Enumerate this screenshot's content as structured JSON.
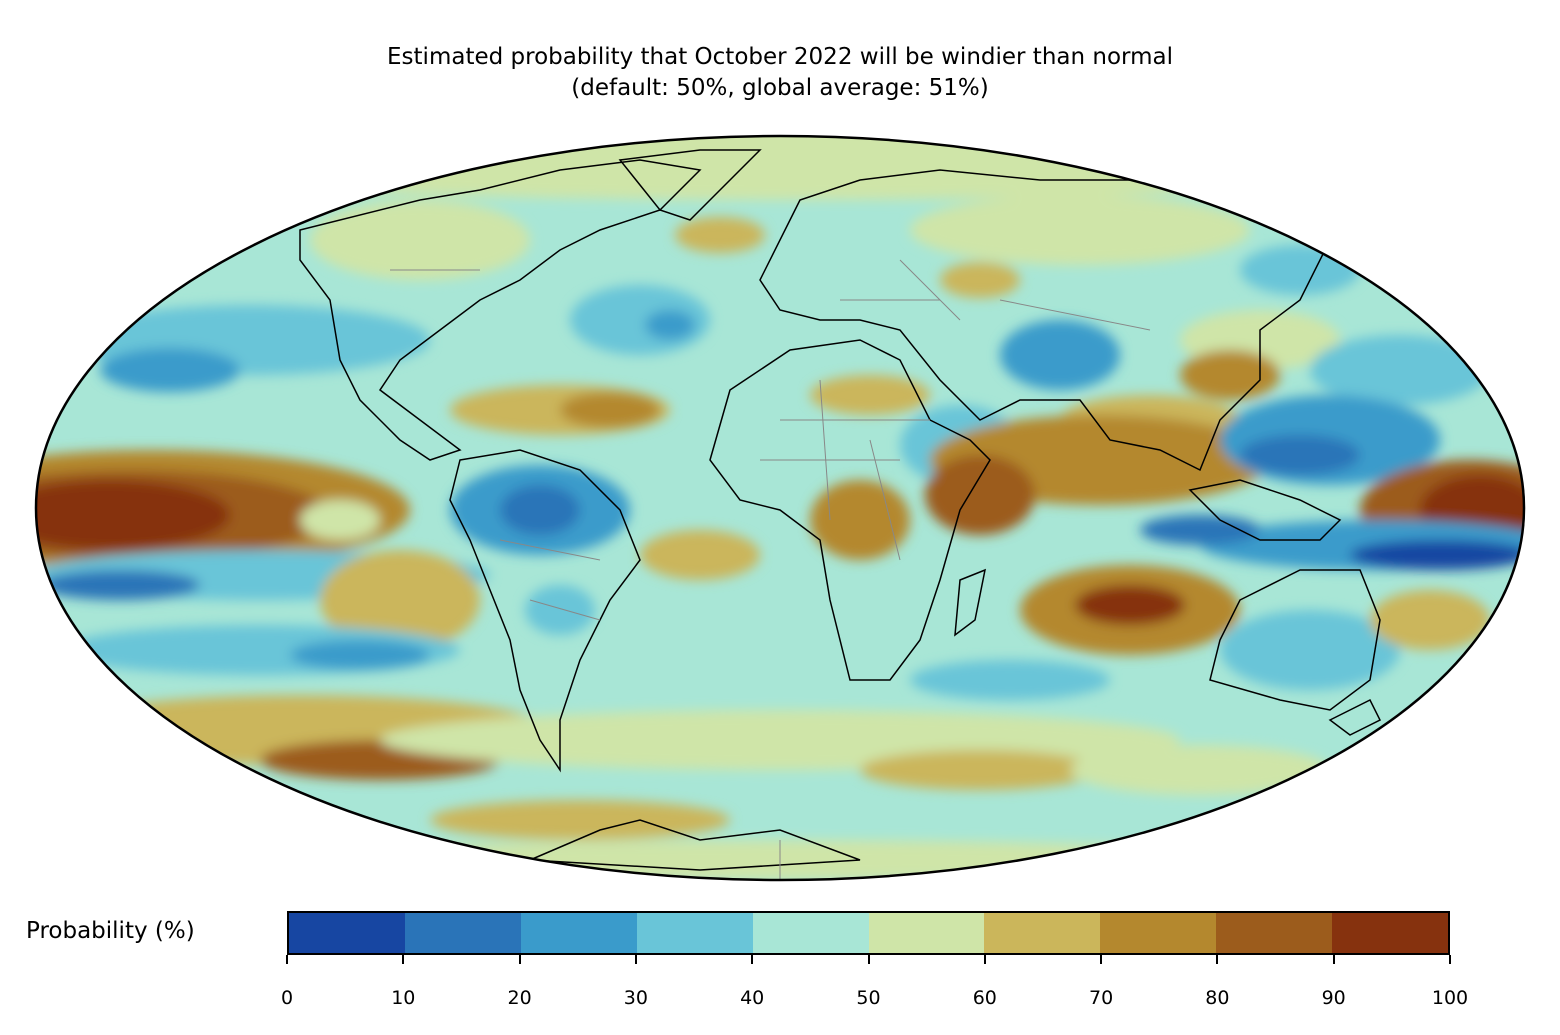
{
  "title": {
    "line1": "Estimated probability that October 2022 will be windier than normal",
    "line2": "(default: 50%, global average: 51%)"
  },
  "map": {
    "projection": "mollweide",
    "features": [
      "coastlines",
      "country-borders"
    ]
  },
  "colorbar": {
    "label": "Probability (%)",
    "ticks": [
      "0",
      "10",
      "20",
      "30",
      "40",
      "50",
      "60",
      "70",
      "80",
      "90",
      "100"
    ],
    "colors": [
      "#1746a2",
      "#2a74b8",
      "#3a9bcb",
      "#69c5d8",
      "#a8e6d6",
      "#cfe5a8",
      "#cbb65b",
      "#b4882e",
      "#9c5c1c",
      "#86320e"
    ]
  }
}
